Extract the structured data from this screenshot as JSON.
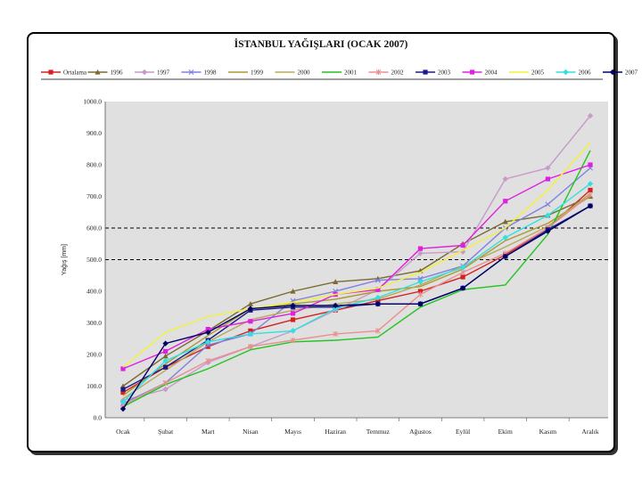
{
  "chart_data": {
    "type": "line",
    "title": "İSTANBUL YAĞIŞLARI  (OCAK 2007)",
    "xlabel": "",
    "ylabel": "Yağış [mm]",
    "ylim": [
      0,
      1000
    ],
    "yticks": [
      "0.0",
      "100.0",
      "200.0",
      "300.0",
      "400.0",
      "500.0",
      "600.0",
      "700.0",
      "800.0",
      "900.0",
      "1000.0"
    ],
    "reference_lines": [
      500,
      600
    ],
    "categories": [
      "Ocak",
      "Şubat",
      "Mart",
      "Nisan",
      "Mayıs",
      "Haziran",
      "Temmuz",
      "Ağustos",
      "Eylül",
      "Ekim",
      "Kasım",
      "Aralık"
    ],
    "series": [
      {
        "name": "Ortalama",
        "color": "#d42020",
        "marker": "square",
        "values": [
          80,
          160,
          225,
          275,
          310,
          340,
          370,
          400,
          445,
          515,
          600,
          720
        ]
      },
      {
        "name": "1996",
        "color": "#7a6a30",
        "marker": "triangle",
        "values": [
          100,
          195,
          275,
          360,
          400,
          430,
          440,
          465,
          550,
          620,
          640,
          700
        ]
      },
      {
        "name": "1997",
        "color": "#c79ac7",
        "marker": "diamond",
        "values": [
          55,
          90,
          175,
          225,
          275,
          340,
          405,
          520,
          525,
          755,
          790,
          955
        ]
      },
      {
        "name": "1998",
        "color": "#8080e0",
        "marker": "x",
        "values": [
          45,
          110,
          230,
          265,
          370,
          400,
          435,
          440,
          480,
          600,
          675,
          790
        ]
      },
      {
        "name": "1999",
        "color": "#aa9a30",
        "marker": "none",
        "values": [
          70,
          170,
          260,
          345,
          360,
          375,
          400,
          415,
          470,
          560,
          615,
          700
        ]
      },
      {
        "name": "2000",
        "color": "#b8a858",
        "marker": "none",
        "values": [
          60,
          150,
          240,
          310,
          340,
          360,
          375,
          420,
          480,
          540,
          605,
          710
        ]
      },
      {
        "name": "2001",
        "color": "#22c422",
        "marker": "none",
        "values": [
          35,
          105,
          155,
          215,
          240,
          245,
          255,
          350,
          405,
          420,
          580,
          845
        ]
      },
      {
        "name": "2002",
        "color": "#e89090",
        "marker": "star",
        "values": [
          40,
          110,
          180,
          225,
          245,
          265,
          275,
          390,
          460,
          520,
          600,
          705
        ]
      },
      {
        "name": "2003",
        "color": "#1a1a8a",
        "marker": "square",
        "values": [
          90,
          160,
          245,
          340,
          350,
          350,
          360,
          360,
          410,
          510,
          595,
          670
        ]
      },
      {
        "name": "2004",
        "color": "#e020e0",
        "marker": "square",
        "values": [
          155,
          210,
          280,
          305,
          330,
          390,
          405,
          535,
          545,
          685,
          755,
          800
        ]
      },
      {
        "name": "2005",
        "color": "#f2f23a",
        "marker": "none",
        "values": [
          160,
          270,
          320,
          345,
          365,
          390,
          410,
          460,
          530,
          600,
          720,
          870
        ]
      },
      {
        "name": "2006",
        "color": "#30e0e0",
        "marker": "diamond",
        "values": [
          50,
          180,
          240,
          265,
          275,
          345,
          380,
          430,
          475,
          570,
          640,
          740
        ]
      },
      {
        "name": "2007",
        "color": "#000066",
        "marker": "diamond",
        "values": [
          28,
          235,
          270,
          345,
          355,
          355,
          360,
          360,
          410,
          510,
          590,
          670
        ]
      }
    ]
  }
}
